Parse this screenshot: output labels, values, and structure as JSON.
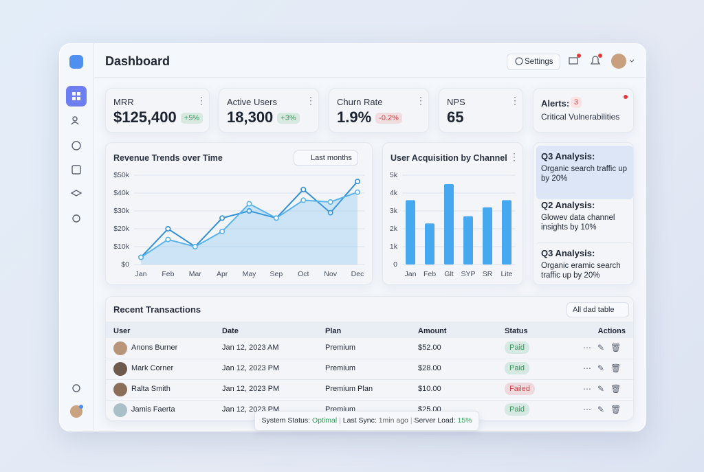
{
  "header": {
    "title": "Dashboard",
    "settings": "Settings"
  },
  "kpis": [
    {
      "label": "MRR",
      "value": "$125,400",
      "change": "+5%",
      "change_color": "#2f9e55"
    },
    {
      "label": "Active Users",
      "value": "18,300",
      "change": "+3%",
      "change_color": "#2f9e55"
    },
    {
      "label": "Churn Rate",
      "value": "1.9%",
      "change": "-0.2%",
      "change_color": "#d64545"
    },
    {
      "label": "NPS",
      "value": "65"
    }
  ],
  "alerts": {
    "label": "Alerts:",
    "count": "3",
    "text": "Critical Vulnerabilities"
  },
  "chart_data": [
    {
      "type": "line",
      "title": "Revenue Trends over Time",
      "filter": "Last months",
      "categories": [
        "Jan",
        "Feb",
        "Mar",
        "Apr",
        "May",
        "Sep",
        "Oct",
        "Nov",
        "Dec"
      ],
      "series": [
        {
          "color": "#2e8fd6",
          "values": [
            4000,
            20000,
            10000,
            26000,
            30000,
            26000,
            42000,
            29000,
            46500
          ]
        },
        {
          "color": "#57b3ea",
          "fill_area": true,
          "values": [
            4000,
            14000,
            10000,
            18500,
            34000,
            26000,
            36000,
            35000,
            40500
          ]
        }
      ],
      "ylim": [
        0,
        50000
      ],
      "yticks": [
        {
          "value": 0,
          "label": "$0"
        },
        {
          "value": 10000,
          "label": "$10k"
        },
        {
          "value": 20000,
          "label": "$20k"
        },
        {
          "value": 30000,
          "label": "$30k"
        },
        {
          "value": 40000,
          "label": "$40k"
        },
        {
          "value": 50000,
          "label": "$50k"
        }
      ],
      "grid": true
    },
    {
      "type": "bar",
      "title": "User Acquisition by Channel",
      "categories": [
        "Jan",
        "Feb",
        "Glt",
        "SYP",
        "SR",
        "Lite"
      ],
      "values": [
        3600,
        2300,
        4500,
        2700,
        3200,
        3600
      ],
      "color": "#46a8ef",
      "ylim": [
        0,
        5000
      ],
      "yticks": [
        0,
        {
          "value": 1000,
          "label": "1k"
        },
        {
          "value": 2000,
          "label": "2k"
        },
        {
          "value": 3000,
          "label": "3k"
        },
        {
          "value": 4000,
          "label": "4k"
        },
        {
          "value": 5000,
          "label": "5k"
        }
      ],
      "grid": true
    }
  ],
  "insights": [
    {
      "title": "Q3 Analysis:",
      "text": "Organic search traffic up by 20%"
    },
    {
      "title": "Q2 Analysis:",
      "text": "Glowev data channel insights by 10%"
    },
    {
      "title": "Q3 Analysis:",
      "text": "Organic eramic search traffic up by 20%"
    }
  ],
  "transactions": {
    "title": "Recent Transactions",
    "filter": "All dad table",
    "columns": [
      "User",
      "Date",
      "Plan",
      "Amount",
      "Status",
      "Actions"
    ],
    "rows": [
      {
        "user": "Anons Burner",
        "date": "Jan 12, 2023 AM",
        "plan": "Premium",
        "amount": "$52.00",
        "status": "Paid",
        "status_color": "#2f9e55"
      },
      {
        "user": "Mark Corner",
        "date": "Jan 12, 2023 PM",
        "plan": "Premium",
        "amount": "$28.00",
        "status": "Paid",
        "status_color": "#2f9e55"
      },
      {
        "user": "Ralta Smith",
        "date": "Jan 12, 2023 PM",
        "plan": "Premium Plan",
        "amount": "$10.00",
        "status": "Failed",
        "status_color": "#d64545"
      },
      {
        "user": "Jamis Faerta",
        "date": "Jan 12, 2023 PM",
        "plan": "Premium",
        "amount": "$25.00",
        "status": "Paid",
        "status_color": "#2f9e55"
      }
    ]
  },
  "status_bar": {
    "status_label": "System Status:",
    "status": "Optimal",
    "sync_label": "Last Sync:",
    "sync": "1min ago",
    "load_label": "Server Load:",
    "load": "15%"
  }
}
